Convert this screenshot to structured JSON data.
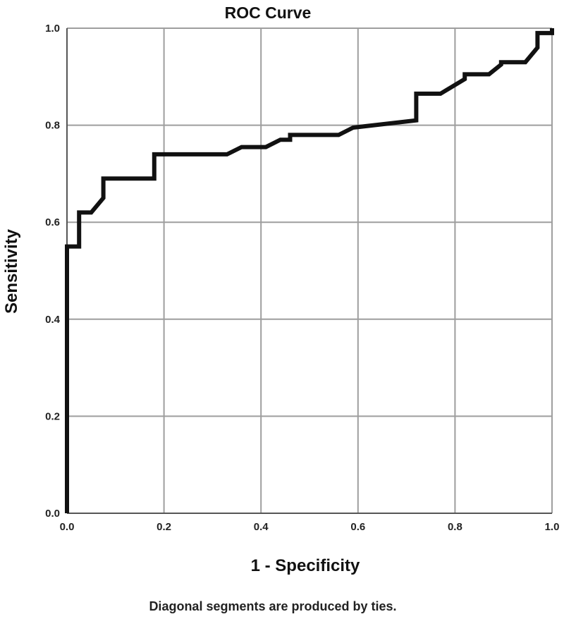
{
  "chart_data": {
    "type": "line",
    "title": "ROC Curve",
    "xlabel": "1 - Specificity",
    "ylabel": "Sensitivity",
    "xlim": [
      0,
      1
    ],
    "ylim": [
      0,
      1
    ],
    "x_ticks": [
      "0.0",
      "0.2",
      "0.4",
      "0.6",
      "0.8",
      "1.0"
    ],
    "y_ticks": [
      "0.0",
      "0.2",
      "0.4",
      "0.6",
      "0.8",
      "1.0"
    ],
    "grid": true,
    "footnote": "Diagonal segments are produced by ties.",
    "line_color": "#111111",
    "grid_color": "#9e9e9e",
    "series": [
      {
        "x": [
          0.0,
          0.0,
          0.025,
          0.025,
          0.05,
          0.075,
          0.075,
          0.18,
          0.18,
          0.33,
          0.36,
          0.41,
          0.44,
          0.46,
          0.46,
          0.56,
          0.59,
          0.72,
          0.72,
          0.77,
          0.82,
          0.82,
          0.87,
          0.895,
          0.895,
          0.945,
          0.97,
          0.97,
          1.0,
          1.0
        ],
        "y": [
          0.0,
          0.55,
          0.55,
          0.62,
          0.62,
          0.65,
          0.69,
          0.69,
          0.74,
          0.74,
          0.755,
          0.755,
          0.77,
          0.77,
          0.78,
          0.78,
          0.795,
          0.81,
          0.865,
          0.865,
          0.895,
          0.905,
          0.905,
          0.925,
          0.93,
          0.93,
          0.96,
          0.99,
          0.99,
          1.0
        ]
      }
    ]
  }
}
